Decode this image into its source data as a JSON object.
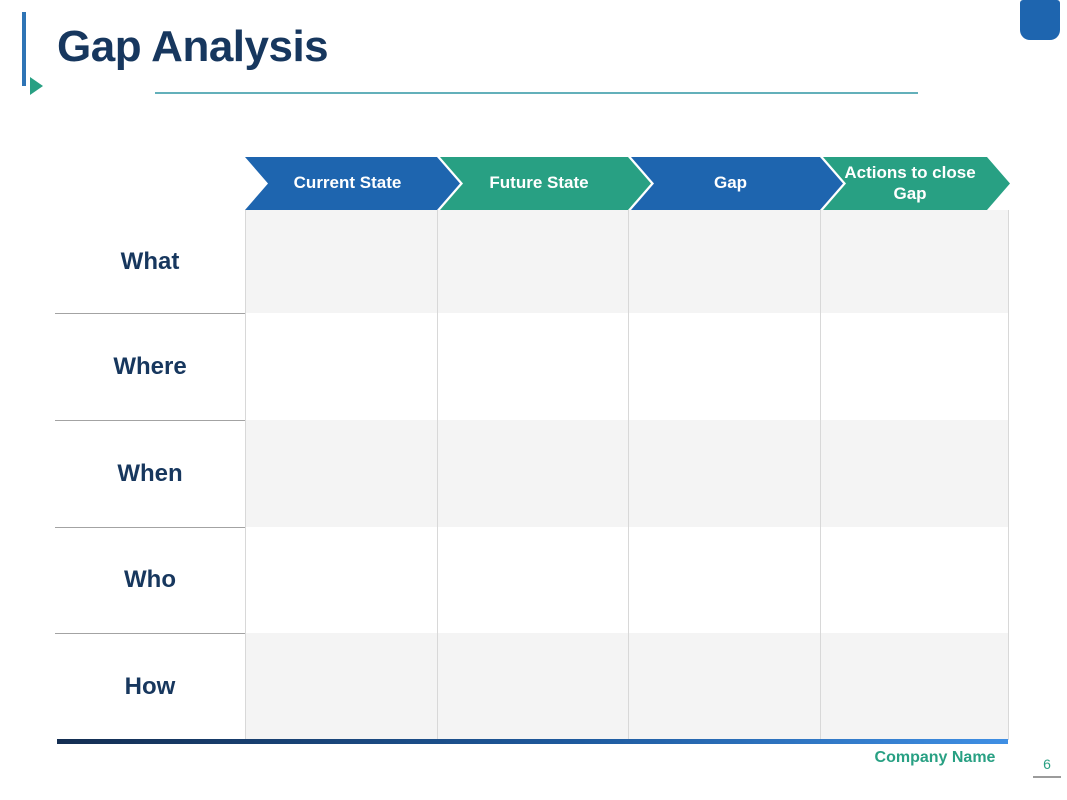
{
  "slide": {
    "title": "Gap Analysis",
    "page_number": "6",
    "company_name": "Company Name"
  },
  "table": {
    "column_headers": [
      {
        "label": "Current State",
        "color_name": "blue"
      },
      {
        "label": "Future State",
        "color_name": "teal"
      },
      {
        "label": "Gap",
        "color_name": "blue"
      },
      {
        "label": "Actions to close Gap",
        "color_name": "teal"
      }
    ],
    "row_headers": [
      "What",
      "Where",
      "When",
      "Who",
      "How"
    ]
  },
  "colors": {
    "navy": "#17375E",
    "blue": "#1E65AF",
    "teal": "#28A083",
    "bar-blue": "#2E74B5",
    "underline": "#63B0BA",
    "stripe": "#F4F4F4",
    "divider": "#D8D8D8",
    "label-line": "#A3A3A3",
    "footer-start": "#142E52",
    "footer-mid": "#1E5A9E",
    "footer-end": "#3F8FE4",
    "page-teal": "#2BA083"
  }
}
